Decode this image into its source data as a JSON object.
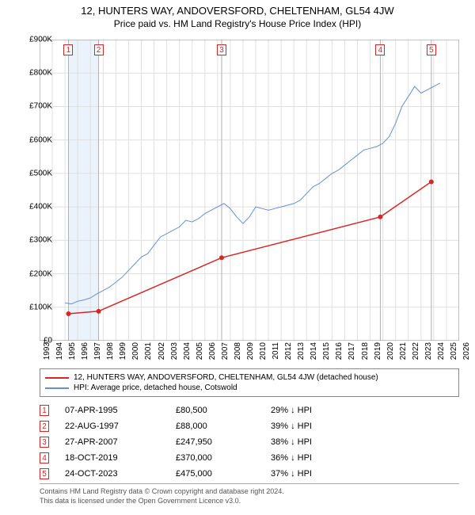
{
  "title": "12, HUNTERS WAY, ANDOVERSFORD, CHELTENHAM, GL54 4JW",
  "subtitle": "Price paid vs. HM Land Registry's House Price Index (HPI)",
  "chart": {
    "type": "line",
    "xlim": [
      1993,
      2026
    ],
    "ylim": [
      0,
      900000
    ],
    "ytick_step": 100000,
    "ytick_labels": [
      "£0",
      "£100K",
      "£200K",
      "£300K",
      "£400K",
      "£500K",
      "£600K",
      "£700K",
      "£800K",
      "£900K"
    ],
    "xtick_step": 1,
    "xtick_labels": [
      "1993",
      "1994",
      "1995",
      "1996",
      "1997",
      "1998",
      "1999",
      "2000",
      "2001",
      "2002",
      "2003",
      "2004",
      "2005",
      "2006",
      "2007",
      "2008",
      "2009",
      "2010",
      "2011",
      "2012",
      "2013",
      "2014",
      "2015",
      "2016",
      "2017",
      "2018",
      "2019",
      "2020",
      "2021",
      "2022",
      "2023",
      "2024",
      "2025",
      "2026"
    ],
    "background_color": "#ffffff",
    "grid_color": "#e0e0e0",
    "axis_color": "#888888",
    "vline_color": "#b0b0b0",
    "band_color": "#eaf2fb",
    "marker_border": "#d62728",
    "marker_text": "#d62728",
    "vbands": [
      {
        "start": 1995.27,
        "end": 1997.64
      }
    ],
    "vlines": [
      1995.27,
      1997.64,
      2007.32,
      2019.8,
      2023.81
    ],
    "series": [
      {
        "name": "price_paid",
        "label": "12, HUNTERS WAY, ANDOVERSFORD, CHELTENHAM, GL54 4JW (detached house)",
        "color": "#d62728",
        "line_width": 1.5,
        "points_x": [
          1995.27,
          1997.64,
          2007.32,
          2019.8,
          2023.81
        ],
        "points_y": [
          80500,
          88000,
          247950,
          370000,
          475000
        ],
        "markers": true,
        "marker_color": "#d62728",
        "marker_radius": 3
      },
      {
        "name": "hpi",
        "label": "HPI: Average price, detached house, Cotswold",
        "color": "#6b8ecf",
        "line_width": 1,
        "markers": false,
        "points_x": [
          1995.0,
          1995.5,
          1996.0,
          1996.5,
          1997.0,
          1997.5,
          1998.0,
          1998.5,
          1999.0,
          1999.5,
          2000.0,
          2000.5,
          2001.0,
          2001.5,
          2002.0,
          2002.5,
          2003.0,
          2003.5,
          2004.0,
          2004.5,
          2005.0,
          2005.5,
          2006.0,
          2006.5,
          2007.0,
          2007.5,
          2008.0,
          2008.5,
          2009.0,
          2009.5,
          2010.0,
          2010.5,
          2011.0,
          2011.5,
          2012.0,
          2012.5,
          2013.0,
          2013.5,
          2014.0,
          2014.5,
          2015.0,
          2015.5,
          2016.0,
          2016.5,
          2017.0,
          2017.5,
          2018.0,
          2018.5,
          2019.0,
          2019.5,
          2020.0,
          2020.5,
          2021.0,
          2021.5,
          2022.0,
          2022.5,
          2023.0,
          2023.5,
          2024.0,
          2024.5
        ],
        "points_y": [
          113000,
          110000,
          118000,
          122000,
          128000,
          140000,
          150000,
          160000,
          175000,
          190000,
          210000,
          230000,
          250000,
          260000,
          285000,
          310000,
          320000,
          330000,
          340000,
          360000,
          355000,
          365000,
          380000,
          390000,
          400000,
          410000,
          395000,
          370000,
          350000,
          370000,
          400000,
          395000,
          390000,
          395000,
          400000,
          405000,
          410000,
          420000,
          440000,
          460000,
          470000,
          485000,
          500000,
          510000,
          525000,
          540000,
          555000,
          570000,
          575000,
          580000,
          590000,
          610000,
          650000,
          700000,
          730000,
          760000,
          740000,
          750000,
          760000,
          770000
        ]
      }
    ],
    "top_markers": [
      {
        "n": "1",
        "x": 1995.27
      },
      {
        "n": "2",
        "x": 1997.64
      },
      {
        "n": "3",
        "x": 2007.32
      },
      {
        "n": "4",
        "x": 2019.8
      },
      {
        "n": "5",
        "x": 2023.81
      }
    ]
  },
  "legend": {
    "items": [
      {
        "color": "#d62728",
        "label": "12, HUNTERS WAY, ANDOVERSFORD, CHELTENHAM, GL54 4JW (detached house)"
      },
      {
        "color": "#6b8ecf",
        "label": "HPI: Average price, detached house, Cotswold"
      }
    ]
  },
  "sales": [
    {
      "n": "1",
      "date": "07-APR-1995",
      "price": "£80,500",
      "delta": "29% ↓ HPI"
    },
    {
      "n": "2",
      "date": "22-AUG-1997",
      "price": "£88,000",
      "delta": "39% ↓ HPI"
    },
    {
      "n": "3",
      "date": "27-APR-2007",
      "price": "£247,950",
      "delta": "38% ↓ HPI"
    },
    {
      "n": "4",
      "date": "18-OCT-2019",
      "price": "£370,000",
      "delta": "36% ↓ HPI"
    },
    {
      "n": "5",
      "date": "24-OCT-2023",
      "price": "£475,000",
      "delta": "37% ↓ HPI"
    }
  ],
  "footer": {
    "line1": "Contains HM Land Registry data © Crown copyright and database right 2024.",
    "line2": "This data is licensed under the Open Government Licence v3.0."
  }
}
